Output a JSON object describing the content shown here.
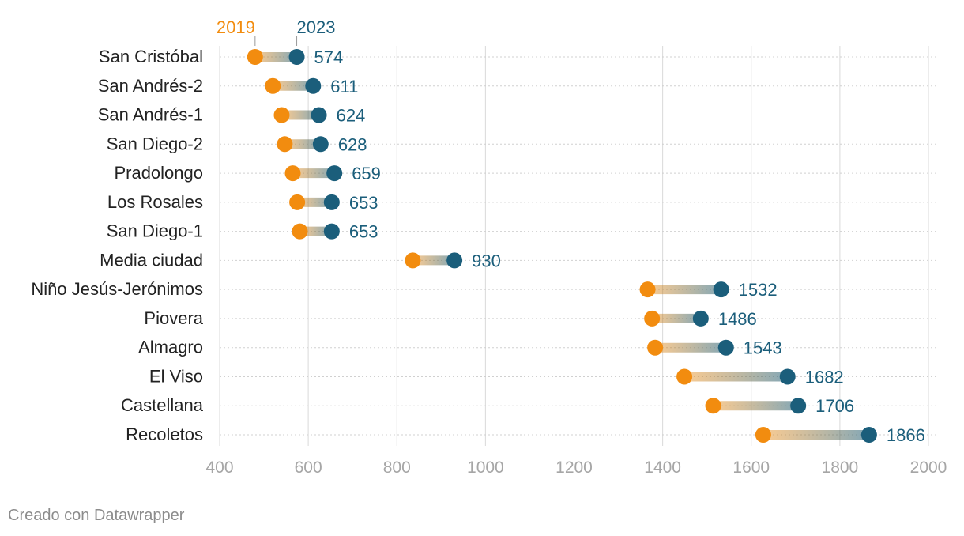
{
  "chart_data": {
    "type": "dumbbell",
    "title": "",
    "xlabel": "",
    "ylabel": "",
    "xlim": [
      400,
      2000
    ],
    "x_ticks": [
      400,
      600,
      800,
      1000,
      1200,
      1400,
      1600,
      1800,
      2000
    ],
    "x_tick_labels": [
      "400",
      "600",
      "800",
      "1000",
      "1200",
      "1400",
      "1600",
      "1800",
      "2000"
    ],
    "grid": true,
    "legend": {
      "start_label": "2019",
      "end_label": "2023",
      "placement": "top"
    },
    "colors": {
      "start": "#f28c0f",
      "end": "#1b5e7b",
      "grid": "#d9d9d9",
      "tick_text": "#a6a6a6",
      "category_text": "#222222"
    },
    "categories": [
      "San Cristóbal",
      "San Andrés-2",
      "San Andrés-1",
      "San Diego-2",
      "Pradolongo",
      "Los Rosales",
      "San Diego-1",
      "Media ciudad",
      "Niño Jesús-Jerónimos",
      "Piovera",
      "Almagro",
      "El Viso",
      "Castellana",
      "Recoletos"
    ],
    "series": [
      {
        "name": "2019",
        "values": [
          480,
          520,
          540,
          547,
          565,
          575,
          581,
          836,
          1366,
          1376,
          1383,
          1449,
          1514,
          1627
        ]
      },
      {
        "name": "2023",
        "values": [
          574,
          611,
          624,
          628,
          659,
          653,
          653,
          930,
          1532,
          1486,
          1543,
          1682,
          1706,
          1866
        ]
      }
    ],
    "value_labels": [
      "574",
      "611",
      "624",
      "628",
      "659",
      "653",
      "653",
      "930",
      "1532",
      "1486",
      "1543",
      "1682",
      "1706",
      "1866"
    ]
  },
  "footer": {
    "text": "Creado con Datawrapper"
  }
}
